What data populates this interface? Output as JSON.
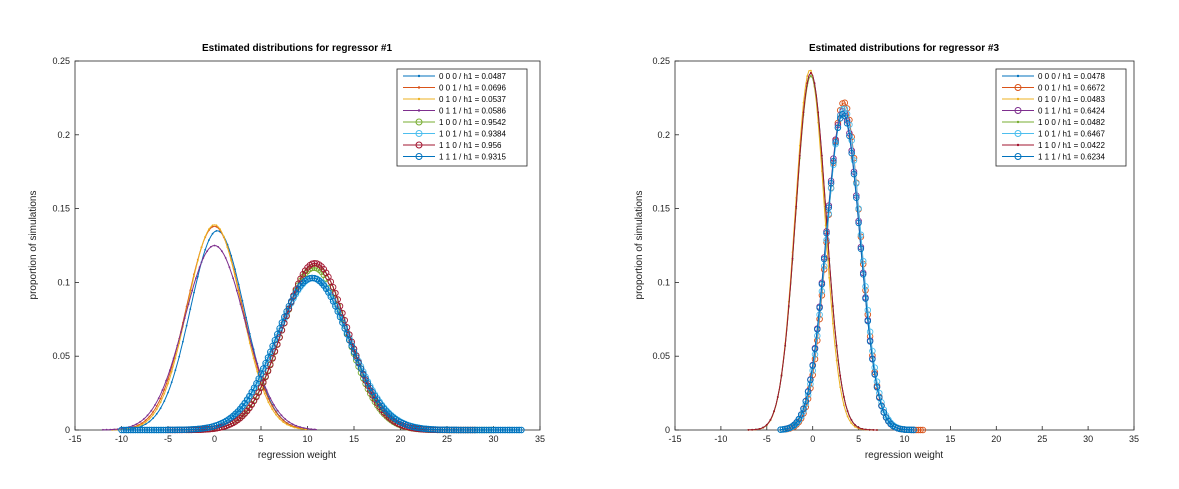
{
  "chart_data": [
    {
      "type": "line",
      "title": "Estimated distributions for regressor #1",
      "xlabel": "regression weight",
      "ylabel": "proportion of simulations",
      "xlim": [
        -15,
        35
      ],
      "ylim": [
        0,
        0.25
      ],
      "xticks": [
        -15,
        -10,
        -5,
        0,
        5,
        10,
        15,
        20,
        25,
        30,
        35
      ],
      "yticks": [
        0,
        0.05,
        0.1,
        0.15,
        0.2,
        0.25
      ],
      "xtick_labels": [
        "-15",
        "-10",
        "-5",
        "0",
        "5",
        "10",
        "15",
        "20",
        "25",
        "30",
        "35"
      ],
      "ytick_labels": [
        "0",
        "0.05",
        "0.1",
        "0.15",
        "0.2",
        "0.25"
      ],
      "legend_position": "top-right",
      "grid": false,
      "series": [
        {
          "name": "0 0 0 / h1 = 0.0487",
          "color": "#0072bd",
          "marker": "dot",
          "mean": 0.3,
          "sd": 2.9,
          "peak": 0.135,
          "x_min": -11,
          "x_max": 10
        },
        {
          "name": "0 0 1 / h1 = 0.0696",
          "color": "#d95319",
          "marker": "dot",
          "mean": 0.0,
          "sd": 3.0,
          "peak": 0.138,
          "x_min": -11,
          "x_max": 10
        },
        {
          "name": "0 1 0 / h1 = 0.0537",
          "color": "#edb120",
          "marker": "dot",
          "mean": 0.0,
          "sd": 2.9,
          "peak": 0.139,
          "x_min": -11,
          "x_max": 10
        },
        {
          "name": "0 1 1 / h1 = 0.0586",
          "color": "#7e2f8e",
          "marker": "dot",
          "mean": 0.0,
          "sd": 3.2,
          "peak": 0.125,
          "x_min": -12,
          "x_max": 11
        },
        {
          "name": "1 0 0 / h1 = 0.9542",
          "color": "#77ac30",
          "marker": "circle",
          "mean": 10.7,
          "sd": 3.5,
          "peak": 0.11,
          "x_min": -3,
          "x_max": 30
        },
        {
          "name": "1 0 1 / h1 = 0.9384",
          "color": "#4dbeee",
          "marker": "circle",
          "mean": 10.6,
          "sd": 3.9,
          "peak": 0.103,
          "x_min": -10,
          "x_max": 33
        },
        {
          "name": "1 1 0 / h1 = 0.956",
          "color": "#a2142f",
          "marker": "circle",
          "mean": 10.8,
          "sd": 3.5,
          "peak": 0.113,
          "x_min": -5,
          "x_max": 28
        },
        {
          "name": "1 1 1 / h1 = 0.9315",
          "color": "#0072bd",
          "marker": "circle",
          "mean": 10.5,
          "sd": 3.9,
          "peak": 0.103,
          "x_min": -10,
          "x_max": 33
        }
      ]
    },
    {
      "type": "line",
      "title": "Estimated distributions for regressor #3",
      "xlabel": "regression weight",
      "ylabel": "proportion of simulations",
      "xlim": [
        -15,
        35
      ],
      "ylim": [
        0,
        0.25
      ],
      "xticks": [
        -15,
        -10,
        -5,
        0,
        5,
        10,
        15,
        20,
        25,
        30,
        35
      ],
      "yticks": [
        0,
        0.05,
        0.1,
        0.15,
        0.2,
        0.25
      ],
      "xtick_labels": [
        "-15",
        "-10",
        "-5",
        "0",
        "5",
        "10",
        "15",
        "20",
        "25",
        "30",
        "35"
      ],
      "ytick_labels": [
        "0",
        "0.05",
        "0.1",
        "0.15",
        "0.2",
        "0.25"
      ],
      "legend_position": "top-right",
      "grid": false,
      "series": [
        {
          "name": "0 0 0 / h1 = 0.0478",
          "color": "#0072bd",
          "marker": "dot",
          "mean": -0.2,
          "sd": 1.65,
          "peak": 0.242,
          "x_min": -7,
          "x_max": 7
        },
        {
          "name": "0 0 1 / h1 = 0.6672",
          "color": "#d95319",
          "marker": "circle",
          "mean": 3.4,
          "sd": 1.8,
          "peak": 0.222,
          "x_min": -3,
          "x_max": 12
        },
        {
          "name": "0 1 0 / h1 = 0.0483",
          "color": "#edb120",
          "marker": "dot",
          "mean": -0.3,
          "sd": 1.6,
          "peak": 0.244,
          "x_min": -7,
          "x_max": 7
        },
        {
          "name": "0 1 1 / h1 = 0.6424",
          "color": "#7e2f8e",
          "marker": "circle",
          "mean": 3.3,
          "sd": 1.85,
          "peak": 0.216,
          "x_min": -3,
          "x_max": 11
        },
        {
          "name": "1 0 0 / h1 = 0.0482",
          "color": "#77ac30",
          "marker": "dot",
          "mean": -0.2,
          "sd": 1.65,
          "peak": 0.24,
          "x_min": -7,
          "x_max": 7
        },
        {
          "name": "1 0 1 / h1 = 0.6467",
          "color": "#4dbeee",
          "marker": "circle",
          "mean": 3.4,
          "sd": 1.85,
          "peak": 0.218,
          "x_min": -3.5,
          "x_max": 11
        },
        {
          "name": "1 1 0 / h1 = 0.0422",
          "color": "#a2142f",
          "marker": "dot",
          "mean": -0.2,
          "sd": 1.65,
          "peak": 0.242,
          "x_min": -7,
          "x_max": 7
        },
        {
          "name": "1 1 1 / h1 = 0.6234",
          "color": "#0072bd",
          "marker": "circle",
          "mean": 3.3,
          "sd": 1.85,
          "peak": 0.214,
          "x_min": -3.5,
          "x_max": 11
        }
      ]
    }
  ]
}
